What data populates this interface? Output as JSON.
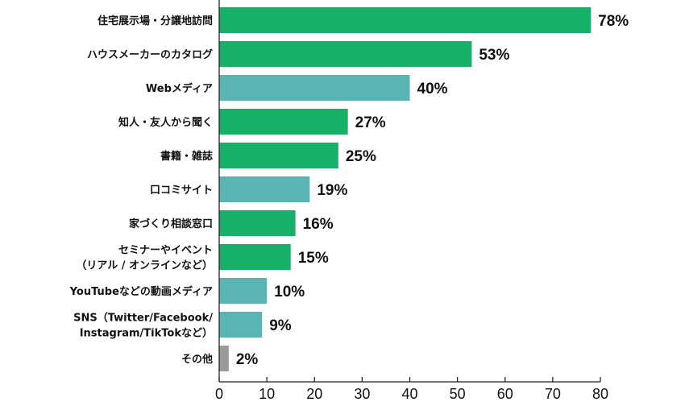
{
  "chart_data": {
    "type": "bar",
    "orientation": "horizontal",
    "categories": [
      [
        "住宅展示場・分譲地訪問"
      ],
      [
        "ハウスメーカーのカタログ"
      ],
      [
        "Webメディア"
      ],
      [
        "知人・友人から聞く"
      ],
      [
        "書籍・雑誌"
      ],
      [
        "口コミサイト"
      ],
      [
        "家づくり相談窓口"
      ],
      [
        "セミナーやイベント",
        "（リアル / オンラインなど）"
      ],
      [
        "YouTubeなどの動画メディア"
      ],
      [
        "SNS（Twitter/Facebook/",
        "Instagram/TikTokなど）"
      ],
      [
        "その他"
      ]
    ],
    "values": [
      78,
      53,
      40,
      27,
      25,
      19,
      16,
      15,
      10,
      9,
      2
    ],
    "value_labels": [
      "78%",
      "53%",
      "40%",
      "27%",
      "25%",
      "19%",
      "16%",
      "15%",
      "10%",
      "9%",
      "2%"
    ],
    "bar_groups": [
      "offline",
      "offline",
      "online",
      "offline",
      "offline",
      "online",
      "offline",
      "offline",
      "online",
      "online",
      "other"
    ],
    "colors": {
      "offline": "#16b069",
      "online": "#58b5b3",
      "other": "#9a9a9a"
    },
    "xlim": [
      0,
      80
    ],
    "xticks": [
      "0",
      "10",
      "20",
      "30",
      "40",
      "50",
      "60",
      "70",
      "80"
    ],
    "grid": false,
    "title": "",
    "xlabel": "",
    "ylabel": ""
  }
}
